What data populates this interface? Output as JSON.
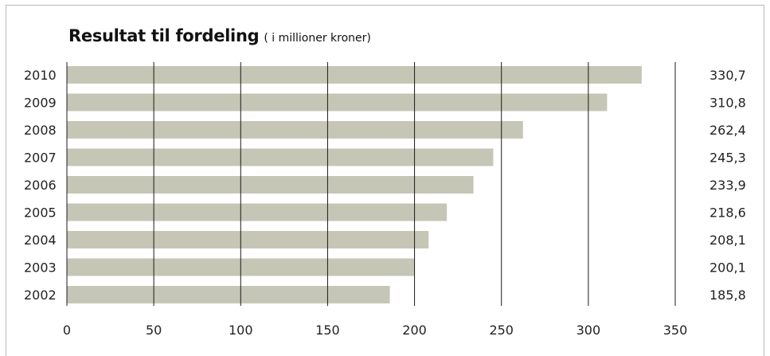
{
  "chart_data": {
    "type": "bar",
    "orientation": "horizontal",
    "title": "Resultat til fordeling",
    "subtitle": "( i millioner kroner)",
    "categories": [
      "2010",
      "2009",
      "2008",
      "2007",
      "2006",
      "2005",
      "2004",
      "2003",
      "2002"
    ],
    "values": [
      330.7,
      310.8,
      262.4,
      245.3,
      233.9,
      218.6,
      208.1,
      200.1,
      185.8
    ],
    "value_labels": [
      "330,7",
      "310,8",
      "262,4",
      "245,3",
      "233,9",
      "218,6",
      "208,1",
      "200,1",
      "185,8"
    ],
    "xlim": [
      0,
      350
    ],
    "xticks": [
      0,
      50,
      100,
      150,
      200,
      250,
      300,
      350
    ],
    "grid": true,
    "bar_color": "#c6c6b6"
  }
}
